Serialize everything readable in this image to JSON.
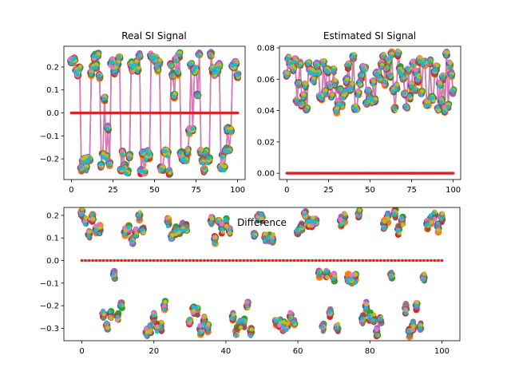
{
  "chart_data": [
    {
      "type": "line",
      "title": "Real SI Signal",
      "xlabel": "",
      "ylabel": "",
      "xlim": [
        -4.5,
        104.5
      ],
      "ylim": [
        -0.29,
        0.29
      ],
      "xticks": [
        0,
        25,
        50,
        75,
        100
      ],
      "yticks": [
        -0.2,
        -0.1,
        0.0,
        0.1,
        0.2
      ],
      "ytick_labels": [
        "−0.2",
        "−0.1",
        "0.0",
        "0.1",
        "0.2"
      ],
      "grid": false,
      "legend": "none",
      "description_values": {
        "n_points": 101,
        "pattern": "16-QAM-like, values cluster around ±0.07 and ±0.21 per sample, plus an all-zero reference series",
        "levels": [
          -0.27,
          -0.21,
          -0.15,
          -0.07,
          0.07,
          0.15,
          0.21,
          0.26
        ]
      }
    },
    {
      "type": "line",
      "title": "Estimated SI Signal",
      "xlabel": "",
      "ylabel": "",
      "xlim": [
        -4.5,
        104.5
      ],
      "ylim": [
        -0.004,
        0.081
      ],
      "xticks": [
        0,
        25,
        50,
        75,
        100
      ],
      "yticks": [
        0.0,
        0.02,
        0.04,
        0.06,
        0.08
      ],
      "ytick_labels": [
        "0.00",
        "0.02",
        "0.04",
        "0.06",
        "0.08"
      ],
      "grid": false,
      "legend": "none",
      "description_values": {
        "n_points": 101,
        "pattern": "magnitude values between about 0.038 and 0.077, plus an all-zero reference series"
      }
    },
    {
      "type": "scatter",
      "title": "Difference",
      "xlabel": "",
      "ylabel": "",
      "xlim": [
        -5,
        105
      ],
      "ylim": [
        -0.355,
        0.235
      ],
      "xticks": [
        0,
        20,
        40,
        60,
        80,
        100
      ],
      "yticks": [
        -0.3,
        -0.2,
        -0.1,
        0.0,
        0.1,
        0.2
      ],
      "ytick_labels": [
        "−0.3",
        "−0.2",
        "−0.1",
        "0.0",
        "0.1",
        "0.2"
      ],
      "grid": false,
      "legend": "none",
      "description_values": {
        "n_points": 101,
        "pattern": "differences cluster near +0.1 to +0.2 and −0.2 to −0.32, plus an all-zero reference series"
      }
    }
  ],
  "colors": {
    "c0": "#1f77b4",
    "c1": "#ff7f0e",
    "c2": "#2ca02c",
    "c3": "#d62728",
    "c4": "#9467bd",
    "c5": "#8c564b",
    "c6": "#e377c2",
    "c7": "#7f7f7f",
    "c8": "#bcbd22",
    "c9": "#17becf"
  }
}
